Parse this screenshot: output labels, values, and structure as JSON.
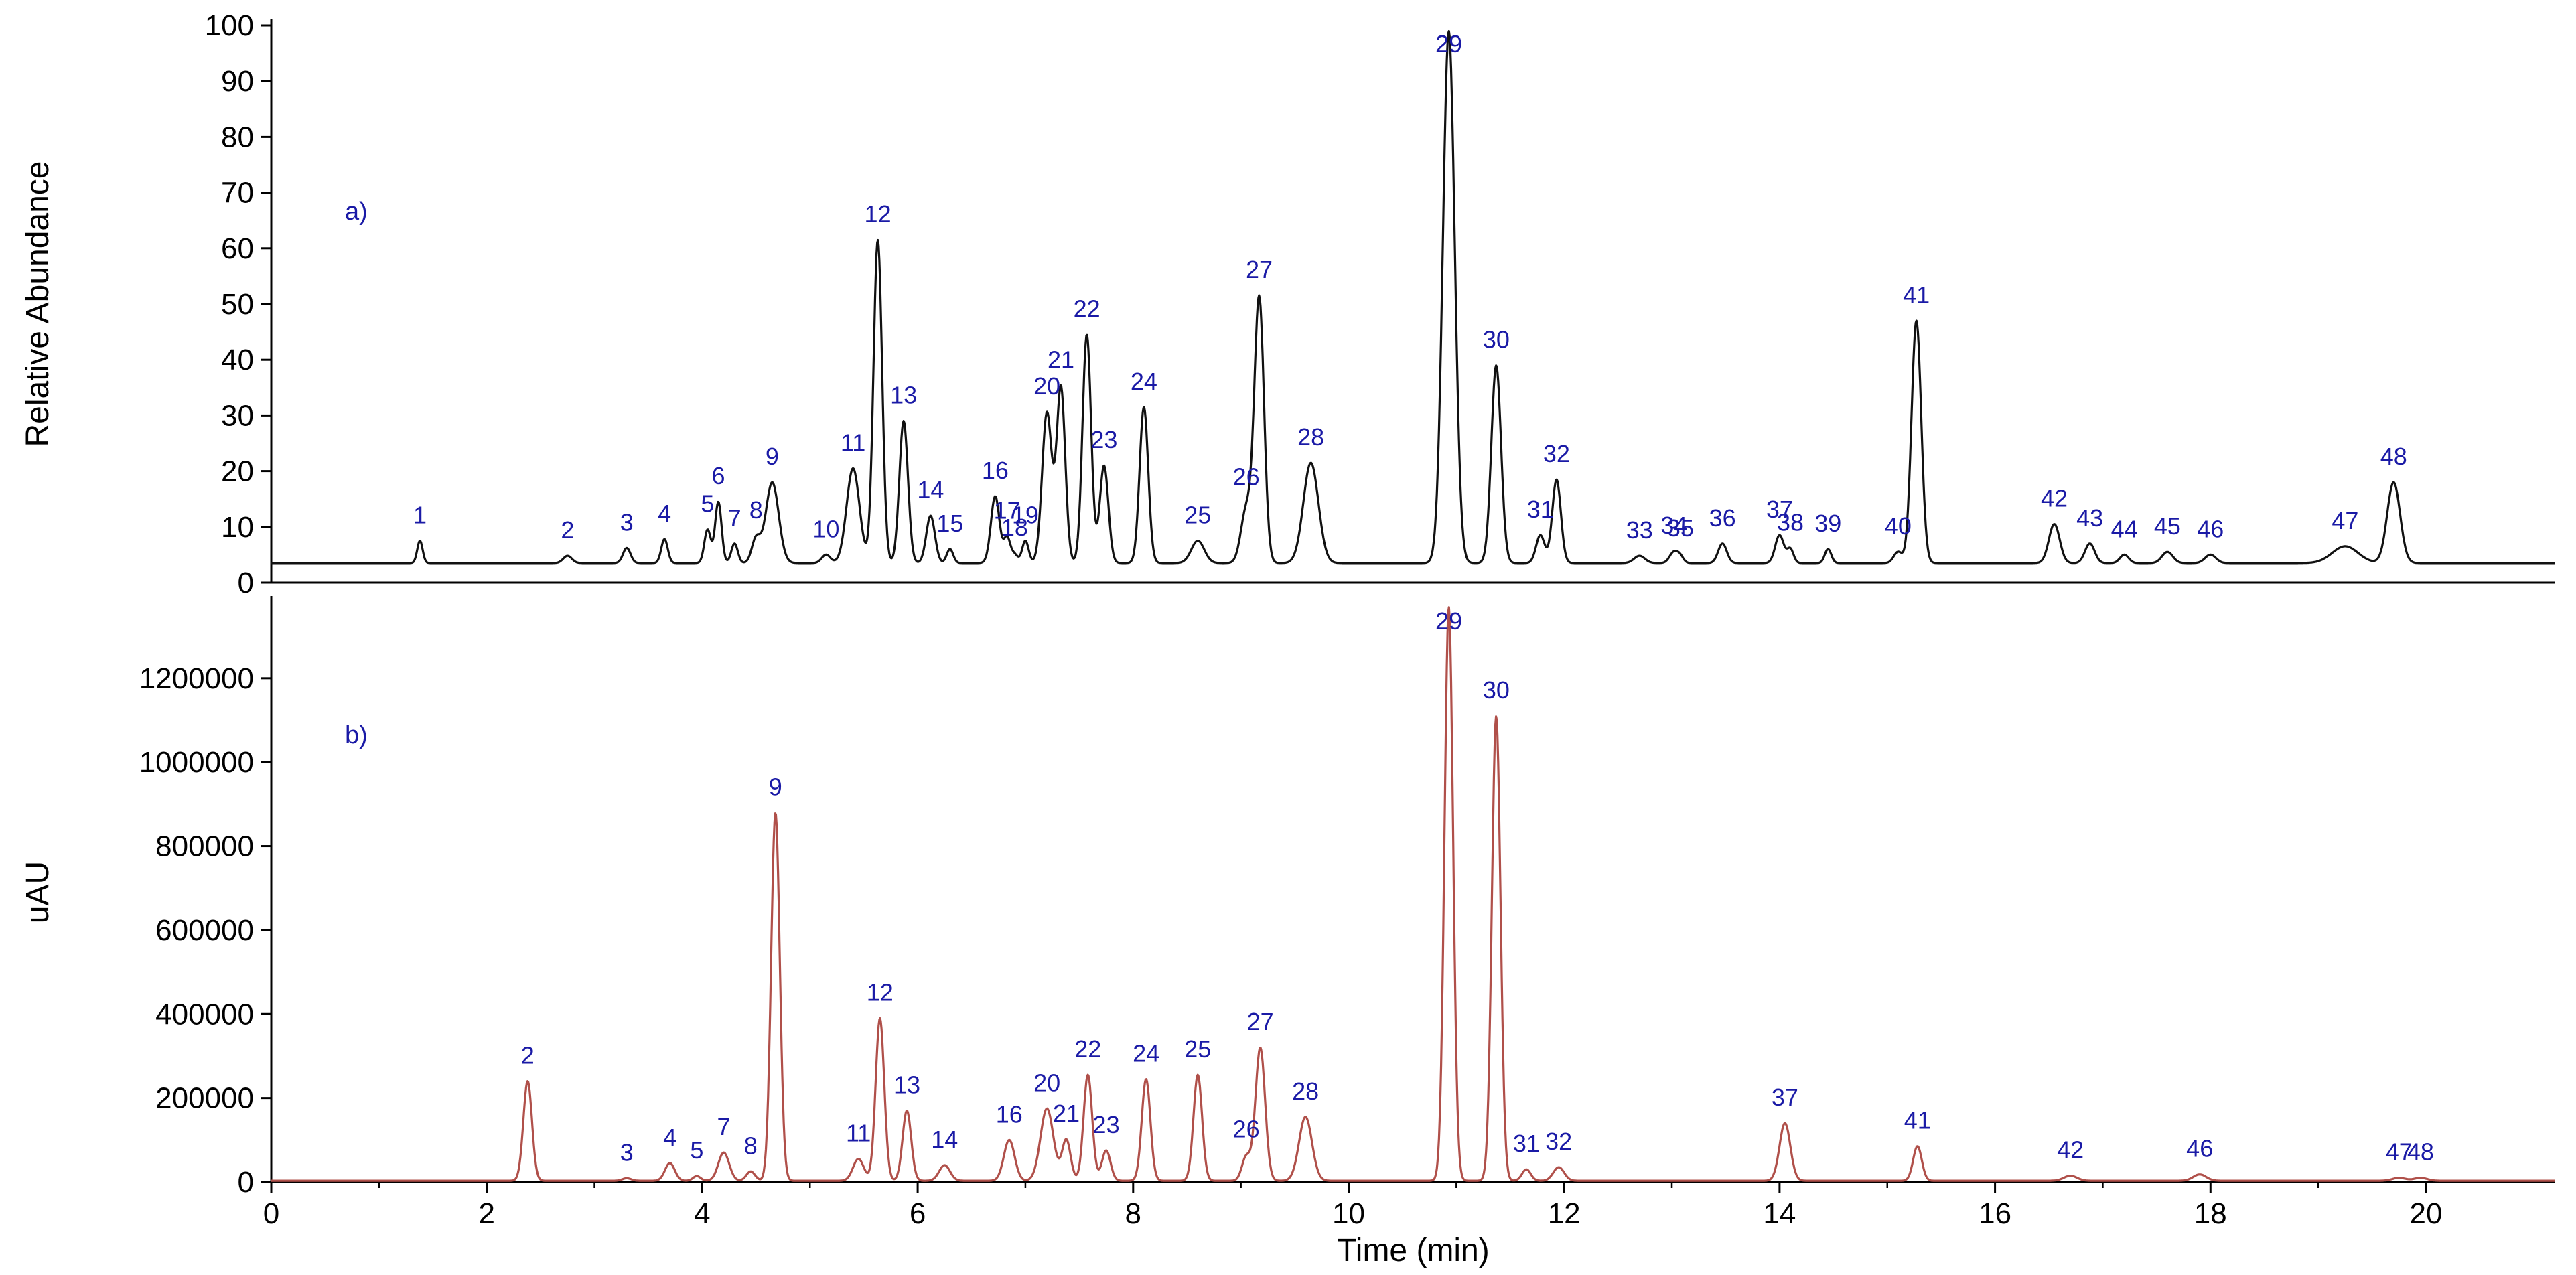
{
  "chart_data": [
    {
      "type": "line",
      "panel_label": "a)",
      "ylabel": "Relative Abundance",
      "xlim": [
        0,
        21.2
      ],
      "ylim": [
        0,
        100
      ],
      "yticks": [
        "0",
        "10",
        "20",
        "30",
        "40",
        "50",
        "60",
        "70",
        "80",
        "90",
        "100"
      ],
      "ytick_values": [
        0,
        10,
        20,
        30,
        40,
        50,
        60,
        70,
        80,
        90,
        100
      ],
      "baseline": 3.5,
      "color": "#111111",
      "peaks": [
        {
          "label": "1",
          "x": 1.38,
          "y": 7.5,
          "w": 0.025
        },
        {
          "label": "2",
          "x": 2.75,
          "y": 4.8,
          "w": 0.04
        },
        {
          "label": "3",
          "x": 3.3,
          "y": 6.2,
          "w": 0.035
        },
        {
          "label": "4",
          "x": 3.65,
          "y": 7.8,
          "w": 0.03
        },
        {
          "label": "5",
          "x": 4.05,
          "y": 9.5,
          "w": 0.03
        },
        {
          "label": "6",
          "x": 4.15,
          "y": 14.5,
          "w": 0.03
        },
        {
          "label": "7",
          "x": 4.3,
          "y": 7.0,
          "w": 0.03
        },
        {
          "label": "8",
          "x": 4.5,
          "y": 7.8,
          "w": 0.04
        },
        {
          "label": "9",
          "x": 4.65,
          "y": 18.0,
          "w": 0.06
        },
        {
          "label": "10",
          "x": 5.15,
          "y": 5.0,
          "w": 0.04
        },
        {
          "label": "11",
          "x": 5.4,
          "y": 20.5,
          "w": 0.06
        },
        {
          "label": "12",
          "x": 5.63,
          "y": 61.5,
          "w": 0.04
        },
        {
          "label": "13",
          "x": 5.87,
          "y": 29.0,
          "w": 0.04
        },
        {
          "label": "14",
          "x": 6.12,
          "y": 12.0,
          "w": 0.04
        },
        {
          "label": "15",
          "x": 6.3,
          "y": 6.0,
          "w": 0.03
        },
        {
          "label": "16",
          "x": 6.72,
          "y": 15.5,
          "w": 0.04
        },
        {
          "label": "17",
          "x": 6.83,
          "y": 8.0,
          "w": 0.03
        },
        {
          "label": "18",
          "x": 6.9,
          "y": 5.0,
          "w": 0.03
        },
        {
          "label": "19",
          "x": 7.0,
          "y": 7.5,
          "w": 0.03
        },
        {
          "label": "20",
          "x": 7.2,
          "y": 30.5,
          "w": 0.045
        },
        {
          "label": "21",
          "x": 7.33,
          "y": 35.0,
          "w": 0.04
        },
        {
          "label": "22",
          "x": 7.57,
          "y": 44.5,
          "w": 0.04
        },
        {
          "label": "23",
          "x": 7.73,
          "y": 21.0,
          "w": 0.04
        },
        {
          "label": "24",
          "x": 8.1,
          "y": 31.5,
          "w": 0.04
        },
        {
          "label": "25",
          "x": 8.6,
          "y": 7.5,
          "w": 0.06
        },
        {
          "label": "26",
          "x": 9.05,
          "y": 13.0,
          "w": 0.05
        },
        {
          "label": "27",
          "x": 9.17,
          "y": 51.0,
          "w": 0.045
        },
        {
          "label": "28",
          "x": 9.65,
          "y": 21.5,
          "w": 0.07
        },
        {
          "label": "29",
          "x": 10.93,
          "y": 99.0,
          "w": 0.055
        },
        {
          "label": "30",
          "x": 11.37,
          "y": 39.0,
          "w": 0.045
        },
        {
          "label": "31",
          "x": 11.78,
          "y": 8.5,
          "w": 0.04
        },
        {
          "label": "32",
          "x": 11.93,
          "y": 18.5,
          "w": 0.04
        },
        {
          "label": "33",
          "x": 12.7,
          "y": 4.8,
          "w": 0.05
        },
        {
          "label": "34",
          "x": 13.02,
          "y": 5.5,
          "w": 0.04
        },
        {
          "label": "35",
          "x": 13.08,
          "y": 4.5,
          "w": 0.03
        },
        {
          "label": "36",
          "x": 13.47,
          "y": 7.0,
          "w": 0.04
        },
        {
          "label": "37",
          "x": 14.0,
          "y": 8.5,
          "w": 0.04
        },
        {
          "label": "38",
          "x": 14.1,
          "y": 6.0,
          "w": 0.03
        },
        {
          "label": "39",
          "x": 14.45,
          "y": 6.0,
          "w": 0.03
        },
        {
          "label": "40",
          "x": 15.1,
          "y": 5.5,
          "w": 0.04
        },
        {
          "label": "41",
          "x": 15.27,
          "y": 47.0,
          "w": 0.045
        },
        {
          "label": "42",
          "x": 16.55,
          "y": 10.5,
          "w": 0.05
        },
        {
          "label": "43",
          "x": 16.88,
          "y": 7.0,
          "w": 0.045
        },
        {
          "label": "44",
          "x": 17.2,
          "y": 5.0,
          "w": 0.04
        },
        {
          "label": "45",
          "x": 17.6,
          "y": 5.5,
          "w": 0.05
        },
        {
          "label": "46",
          "x": 18.0,
          "y": 5.0,
          "w": 0.05
        },
        {
          "label": "47",
          "x": 19.25,
          "y": 6.5,
          "w": 0.12
        },
        {
          "label": "48",
          "x": 19.7,
          "y": 18.0,
          "w": 0.06
        }
      ]
    },
    {
      "type": "line",
      "panel_label": "b)",
      "ylabel": "uAU",
      "xlabel": "Time (min)",
      "xlim": [
        0,
        21.2
      ],
      "ylim": [
        0,
        1380000
      ],
      "xticks": [
        "0",
        "2",
        "4",
        "6",
        "8",
        "10",
        "12",
        "14",
        "16",
        "18",
        "20"
      ],
      "xtick_values": [
        0,
        2,
        4,
        6,
        8,
        10,
        12,
        14,
        16,
        18,
        20
      ],
      "yticks": [
        "0",
        "200000",
        "400000",
        "600000",
        "800000",
        "1000000",
        "1200000"
      ],
      "ytick_values": [
        0,
        200000,
        400000,
        600000,
        800000,
        1000000,
        1200000
      ],
      "baseline": 3000,
      "color": "#b0504a",
      "peaks": [
        {
          "label": "2",
          "x": 2.38,
          "y": 240000,
          "w": 0.04
        },
        {
          "label": "3",
          "x": 3.3,
          "y": 9000,
          "w": 0.04
        },
        {
          "label": "4",
          "x": 3.7,
          "y": 45000,
          "w": 0.045
        },
        {
          "label": "5",
          "x": 3.95,
          "y": 14000,
          "w": 0.035
        },
        {
          "label": "7",
          "x": 4.2,
          "y": 70000,
          "w": 0.05
        },
        {
          "label": "8",
          "x": 4.45,
          "y": 25000,
          "w": 0.04
        },
        {
          "label": "9",
          "x": 4.68,
          "y": 880000,
          "w": 0.04
        },
        {
          "label": "11",
          "x": 5.45,
          "y": 55000,
          "w": 0.05
        },
        {
          "label": "12",
          "x": 5.65,
          "y": 390000,
          "w": 0.04
        },
        {
          "label": "13",
          "x": 5.9,
          "y": 170000,
          "w": 0.04
        },
        {
          "label": "14",
          "x": 6.25,
          "y": 40000,
          "w": 0.05
        },
        {
          "label": "16",
          "x": 6.85,
          "y": 100000,
          "w": 0.05
        },
        {
          "label": "20",
          "x": 7.2,
          "y": 175000,
          "w": 0.06
        },
        {
          "label": "21",
          "x": 7.38,
          "y": 100000,
          "w": 0.04
        },
        {
          "label": "22",
          "x": 7.58,
          "y": 255000,
          "w": 0.04
        },
        {
          "label": "23",
          "x": 7.75,
          "y": 75000,
          "w": 0.04
        },
        {
          "label": "24",
          "x": 8.12,
          "y": 245000,
          "w": 0.04
        },
        {
          "label": "25",
          "x": 8.6,
          "y": 255000,
          "w": 0.04
        },
        {
          "label": "26",
          "x": 9.05,
          "y": 60000,
          "w": 0.04
        },
        {
          "label": "27",
          "x": 9.18,
          "y": 320000,
          "w": 0.045
        },
        {
          "label": "28",
          "x": 9.6,
          "y": 155000,
          "w": 0.06
        },
        {
          "label": "29",
          "x": 10.93,
          "y": 1370000,
          "w": 0.04
        },
        {
          "label": "30",
          "x": 11.37,
          "y": 1110000,
          "w": 0.04
        },
        {
          "label": "31",
          "x": 11.65,
          "y": 30000,
          "w": 0.04
        },
        {
          "label": "32",
          "x": 11.95,
          "y": 35000,
          "w": 0.05
        },
        {
          "label": "37",
          "x": 14.05,
          "y": 140000,
          "w": 0.05
        },
        {
          "label": "41",
          "x": 15.28,
          "y": 85000,
          "w": 0.04
        },
        {
          "label": "42",
          "x": 16.7,
          "y": 15000,
          "w": 0.06
        },
        {
          "label": "46",
          "x": 17.9,
          "y": 18000,
          "w": 0.06
        },
        {
          "label": "47",
          "x": 19.75,
          "y": 10000,
          "w": 0.06
        },
        {
          "label": "48",
          "x": 19.95,
          "y": 10000,
          "w": 0.06
        }
      ]
    }
  ]
}
